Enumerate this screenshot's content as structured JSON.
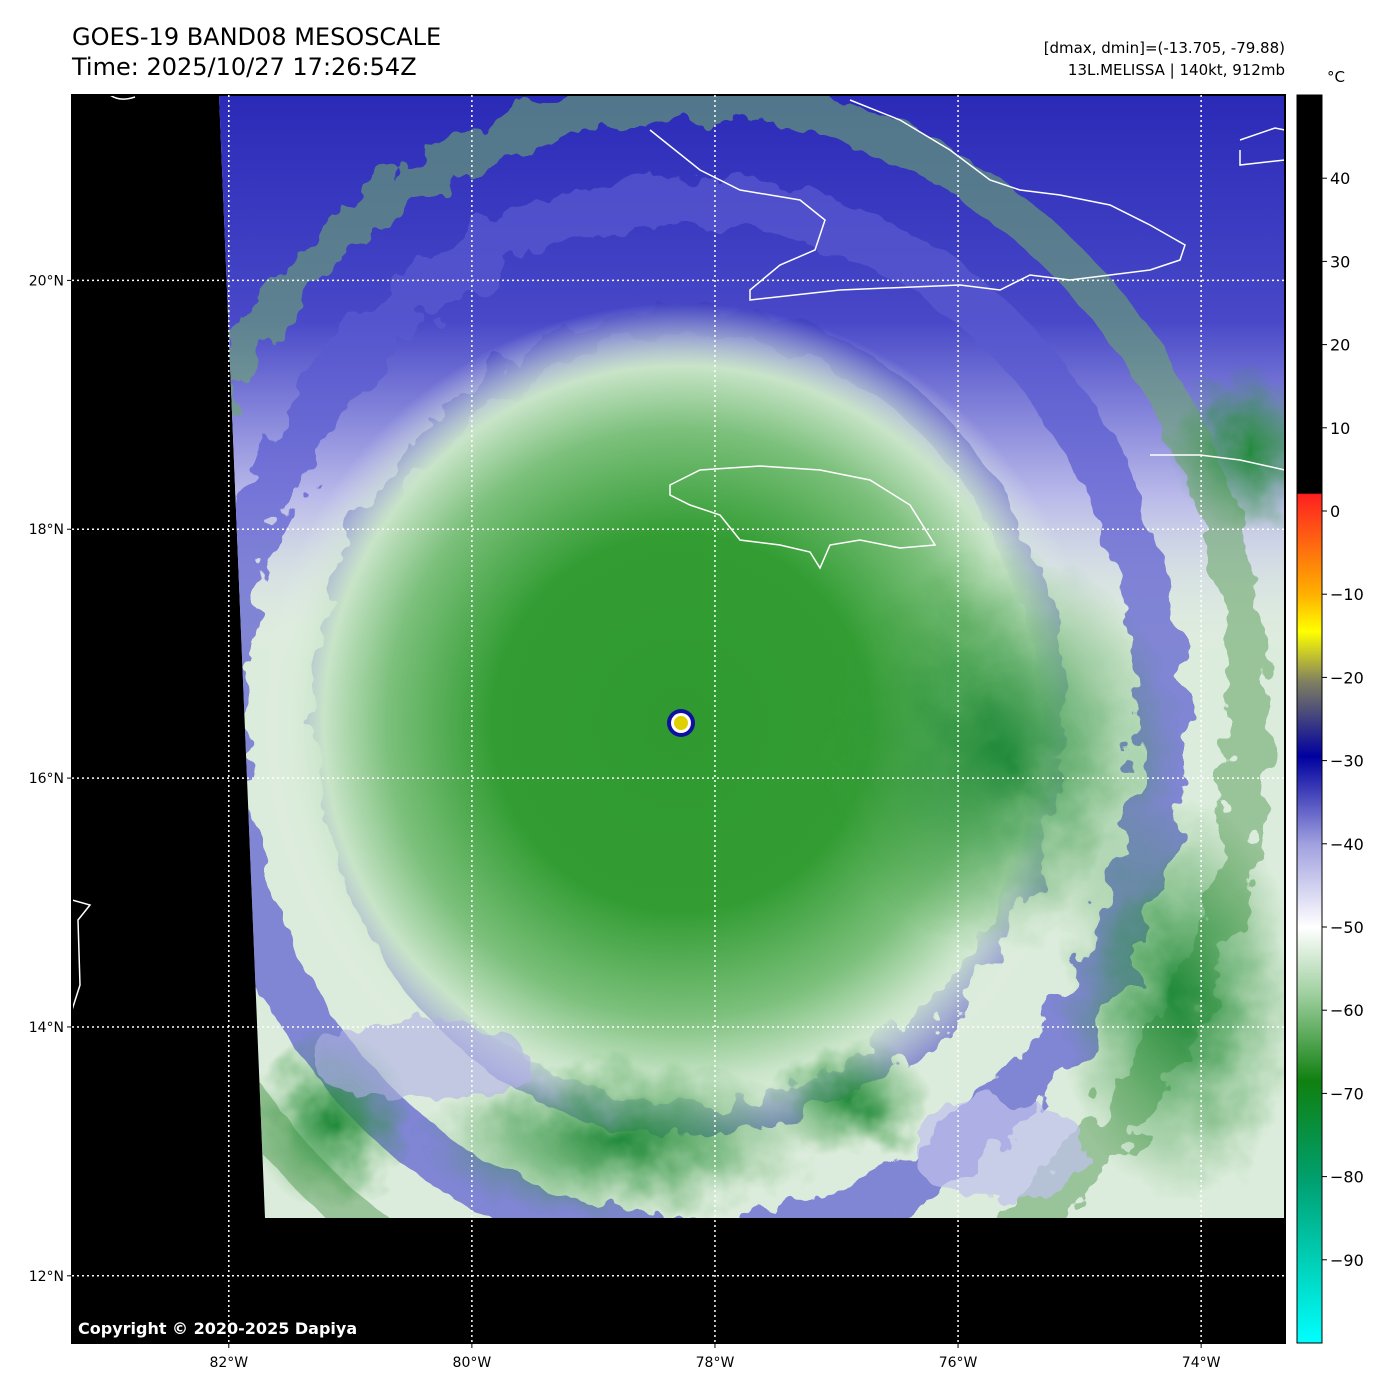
{
  "header": {
    "title": "GOES-19 BAND08 MESOSCALE",
    "time": "Time: 2025/10/27 17:26:54Z",
    "range": "[dmax, dmin]=(-13.705, -79.88)",
    "storm": "13L.MELISSA | 140kt, 912mb"
  },
  "map": {
    "xlim": [
      -83.29,
      -73.31
    ],
    "ylim": [
      11.46,
      21.49
    ],
    "xticks": [
      {
        "value": -82,
        "label": "82°W"
      },
      {
        "value": -80,
        "label": "80°W"
      },
      {
        "value": -78,
        "label": "78°W"
      },
      {
        "value": -76,
        "label": "76°W"
      },
      {
        "value": -74,
        "label": "74°W"
      }
    ],
    "yticks": [
      {
        "value": 20,
        "label": "20°N"
      },
      {
        "value": 18,
        "label": "18°N"
      },
      {
        "value": 16,
        "label": "16°N"
      },
      {
        "value": 14,
        "label": "14°N"
      },
      {
        "value": 12,
        "label": "12°N"
      }
    ],
    "grid": true
  },
  "colorbar": {
    "unit": "°C",
    "clim": [
      -100,
      50
    ],
    "ticks": [
      40,
      30,
      20,
      10,
      0,
      {
        "value": -10,
        "label": "−10"
      },
      {
        "value": -20,
        "label": "−20"
      },
      {
        "value": -30,
        "label": "−30"
      },
      {
        "value": -40,
        "label": "−40"
      },
      {
        "value": -50,
        "label": "−50"
      },
      {
        "value": -60,
        "label": "−60"
      },
      {
        "value": -70,
        "label": "−70"
      },
      {
        "value": -80,
        "label": "−80"
      },
      {
        "value": -90,
        "label": "−90"
      }
    ]
  },
  "footer": {
    "copyright": "Copyright © 2020-2025 Dapiya"
  }
}
